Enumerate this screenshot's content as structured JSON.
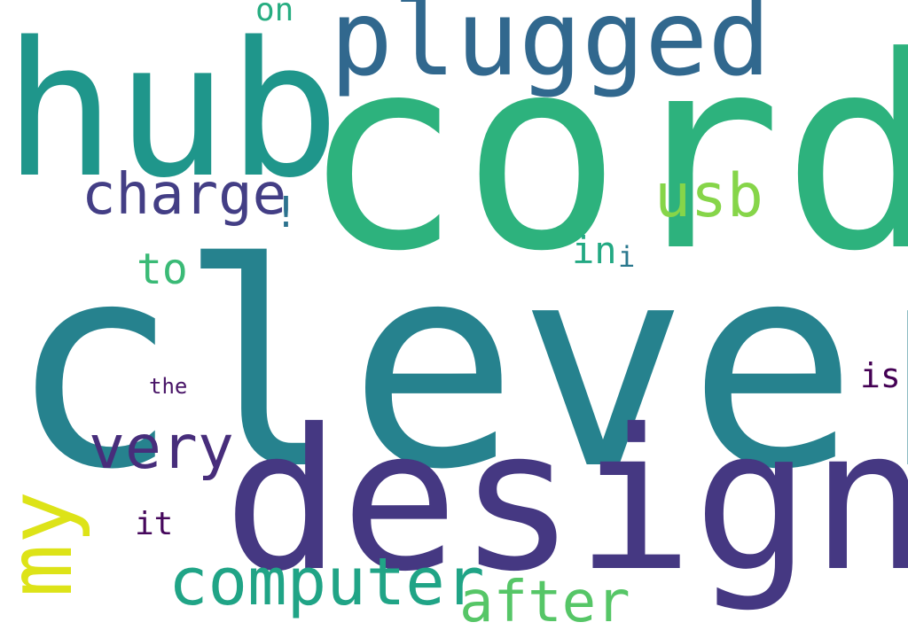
{
  "words": [
    {
      "key": "clever",
      "text": "clever",
      "color": "#26828e"
    },
    {
      "key": "cord",
      "text": "cord",
      "color": "#2db27d"
    },
    {
      "key": "design",
      "text": "design",
      "color": "#453882"
    },
    {
      "key": "hub",
      "text": "hub",
      "color": "#1f968b"
    },
    {
      "key": "plugged",
      "text": "plugged",
      "color": "#31688e"
    },
    {
      "key": "computer",
      "text": "computer",
      "color": "#20a486"
    },
    {
      "key": "charge",
      "text": "charge",
      "color": "#433e85"
    },
    {
      "key": "very",
      "text": "very",
      "color": "#472d7b"
    },
    {
      "key": "usb",
      "text": "usb",
      "color": "#86d549"
    },
    {
      "key": "after",
      "text": "after",
      "color": "#56c667"
    },
    {
      "key": "my",
      "text": "my",
      "color": "#dde318"
    },
    {
      "key": "to",
      "text": "to",
      "color": "#3aba76"
    },
    {
      "key": "in",
      "text": "in",
      "color": "#23a983"
    },
    {
      "key": "on",
      "text": "on",
      "color": "#27ad81"
    },
    {
      "key": "i",
      "text": "i",
      "color": "#2a788e"
    },
    {
      "key": "is",
      "text": "is",
      "color": "#440154"
    },
    {
      "key": "it",
      "text": "it",
      "color": "#46085c"
    },
    {
      "key": "the",
      "text": "the",
      "color": "#481467"
    },
    {
      "key": "bang",
      "text": "!",
      "color": "#2c728e"
    }
  ]
}
